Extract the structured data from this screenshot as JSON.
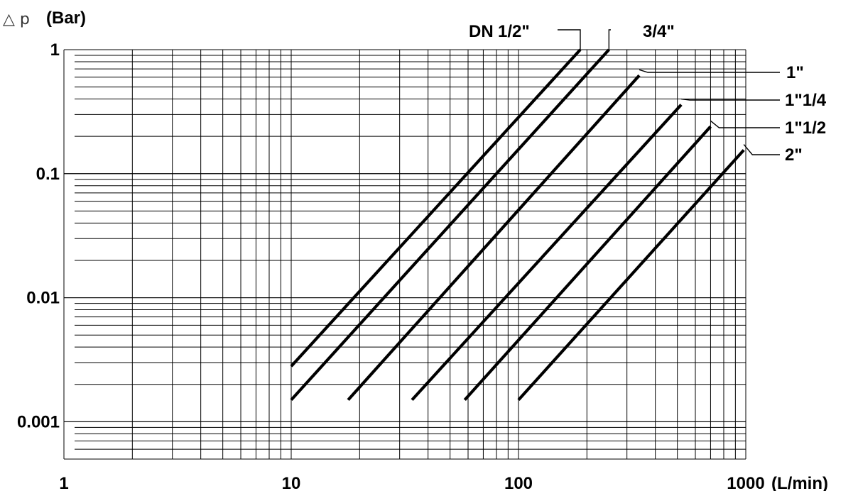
{
  "chart_data": {
    "type": "line",
    "title": "",
    "xlabel": "(L/min)",
    "ylabel": "(Bar)",
    "ylabel_prefix": "△ p",
    "x_scale": "log",
    "y_scale": "log",
    "xlim": [
      1,
      1000
    ],
    "ylim": [
      0.0005,
      1
    ],
    "grid": true,
    "x_ticks": [
      1,
      10,
      100,
      1000
    ],
    "x_tick_labels": [
      "1",
      "10",
      "100",
      "1000"
    ],
    "y_ticks": [
      0.001,
      0.01,
      0.1,
      1
    ],
    "y_tick_labels": [
      "0.001",
      "0.01",
      "0.1",
      "1"
    ],
    "legend_prefix": "DN",
    "series": [
      {
        "name": "1/2\"",
        "x": [
          10,
          187
        ],
        "y": [
          0.0028,
          1.0
        ]
      },
      {
        "name": "3/4\"",
        "x": [
          10,
          250
        ],
        "y": [
          0.0015,
          1.0
        ]
      },
      {
        "name": "1\"",
        "x": [
          17.8,
          340
        ],
        "y": [
          0.0015,
          0.62
        ]
      },
      {
        "name": "1\"1/4",
        "x": [
          34,
          520
        ],
        "y": [
          0.0015,
          0.36
        ]
      },
      {
        "name": "1\"1/2",
        "x": [
          58,
          700
        ],
        "y": [
          0.0015,
          0.24
        ]
      },
      {
        "name": "2\"",
        "x": [
          100,
          980
        ],
        "y": [
          0.0015,
          0.155
        ]
      }
    ]
  }
}
